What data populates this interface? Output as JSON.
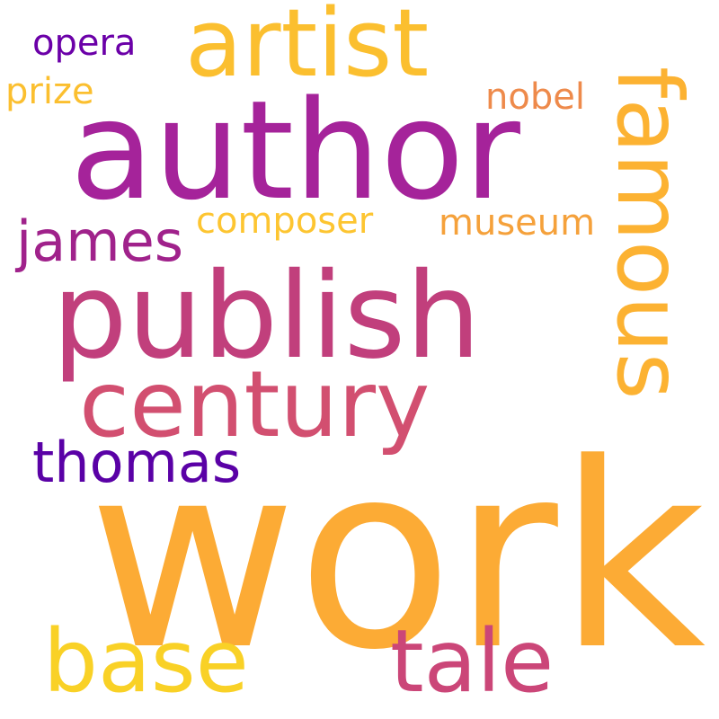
{
  "words": [
    {
      "key": "work",
      "text": "work",
      "color": "#fcab35"
    },
    {
      "key": "author",
      "text": "author",
      "color": "#a5239a"
    },
    {
      "key": "publish",
      "text": "publish",
      "color": "#c13f7c"
    },
    {
      "key": "century",
      "text": "century",
      "color": "#d24f70"
    },
    {
      "key": "artist",
      "text": "artist",
      "color": "#fbbf2f"
    },
    {
      "key": "famous",
      "text": "famous",
      "color": "#fcb232"
    },
    {
      "key": "base",
      "text": "base",
      "color": "#f9d126"
    },
    {
      "key": "tale",
      "text": "tale",
      "color": "#cb4678"
    },
    {
      "key": "thomas",
      "text": "thomas",
      "color": "#5a01a6"
    },
    {
      "key": "james",
      "text": "james",
      "color": "#a0228b"
    },
    {
      "key": "composer",
      "text": "composer",
      "color": "#fdc531"
    },
    {
      "key": "museum",
      "text": "museum",
      "color": "#f5a13b"
    },
    {
      "key": "nobel",
      "text": "nobel",
      "color": "#ee8a4b"
    },
    {
      "key": "opera",
      "text": "opera",
      "color": "#6b00a8"
    },
    {
      "key": "prize",
      "text": "prize",
      "color": "#fbbf2f"
    }
  ]
}
